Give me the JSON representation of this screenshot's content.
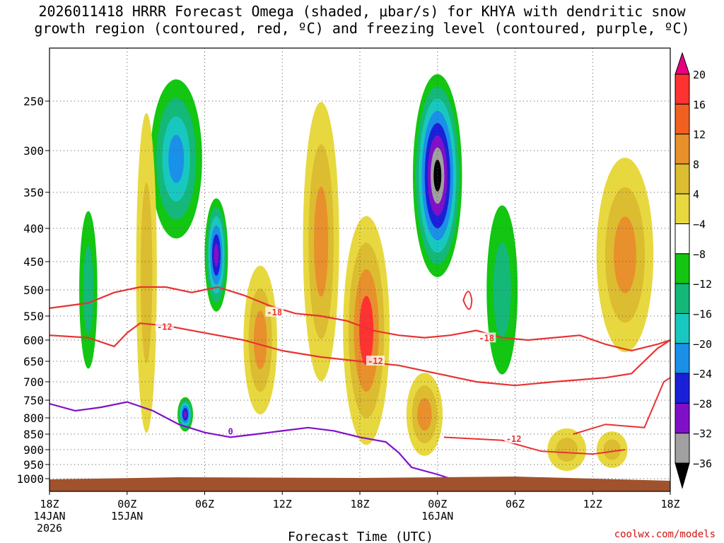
{
  "chart_data": {
    "type": "heatmap",
    "title_line1": "2026011418 HRRR Forecast Omega (shaded, μbar/s) for KHYA with dendritic snow",
    "title_line2": "growth region (contoured, red, ºC) and freezing level (contoured, purple, ºC)",
    "xlabel": "Forecast Time (UTC)",
    "credit": "coolwx.com/models",
    "x_range_hours": [
      0,
      48
    ],
    "y_range_hpa": [
      1000,
      200
    ],
    "y_ticks": [
      "250",
      "300",
      "350",
      "400",
      "450",
      "500",
      "550",
      "600",
      "650",
      "700",
      "750",
      "800",
      "850",
      "900",
      "950",
      "1000"
    ],
    "x_ticks": [
      {
        "hour": 0,
        "l1": "18Z",
        "l2": "14JAN",
        "l3": "2026"
      },
      {
        "hour": 6,
        "l1": "00Z",
        "l2": "15JAN",
        "l3": ""
      },
      {
        "hour": 12,
        "l1": "06Z",
        "l2": "",
        "l3": ""
      },
      {
        "hour": 18,
        "l1": "12Z",
        "l2": "",
        "l3": ""
      },
      {
        "hour": 24,
        "l1": "18Z",
        "l2": "",
        "l3": ""
      },
      {
        "hour": 30,
        "l1": "00Z",
        "l2": "16JAN",
        "l3": ""
      },
      {
        "hour": 36,
        "l1": "06Z",
        "l2": "",
        "l3": ""
      },
      {
        "hour": 42,
        "l1": "12Z",
        "l2": "",
        "l3": ""
      },
      {
        "hour": 48,
        "l1": "18Z",
        "l2": "",
        "l3": ""
      }
    ],
    "colorbar": {
      "labels": [
        "20",
        "16",
        "12",
        "8",
        "4",
        "−4",
        "−8",
        "−12",
        "−16",
        "−20",
        "−24",
        "−28",
        "−32",
        "−36"
      ],
      "colors": [
        "#e8007e",
        "#ff3232",
        "#f06020",
        "#e8902c",
        "#dcbc30",
        "#e8d840",
        "#ffffff",
        "#12c612",
        "#14b878",
        "#18c8c0",
        "#1a90e8",
        "#1a20d8",
        "#8010c8",
        "#a0a0a0",
        "#000000"
      ]
    },
    "contour_labels": {
      "dgz_red": [
        "-18",
        "-12",
        "-18",
        "-12",
        "-12"
      ],
      "freezing_purple": [
        "0"
      ]
    },
    "dgz_upper_minus18": [
      [
        0,
        535
      ],
      [
        3,
        525
      ],
      [
        5,
        505
      ],
      [
        7,
        495
      ],
      [
        9,
        495
      ],
      [
        11,
        505
      ],
      [
        13,
        495
      ],
      [
        15,
        510
      ],
      [
        17,
        530
      ],
      [
        19,
        545
      ],
      [
        21,
        550
      ],
      [
        23,
        560
      ],
      [
        25,
        580
      ],
      [
        27,
        590
      ],
      [
        29,
        595
      ],
      [
        31,
        590
      ],
      [
        33,
        580
      ],
      [
        35,
        595
      ],
      [
        37,
        600
      ],
      [
        39,
        595
      ],
      [
        41,
        590
      ],
      [
        43,
        610
      ],
      [
        45,
        625
      ],
      [
        47,
        610
      ],
      [
        48,
        600
      ]
    ],
    "dgz_lower_minus12": [
      [
        0,
        590
      ],
      [
        3,
        595
      ],
      [
        5,
        615
      ],
      [
        6,
        585
      ],
      [
        7,
        565
      ],
      [
        9,
        570
      ],
      [
        12,
        585
      ],
      [
        15,
        600
      ],
      [
        18,
        625
      ],
      [
        21,
        640
      ],
      [
        24,
        650
      ],
      [
        27,
        660
      ],
      [
        30,
        680
      ],
      [
        33,
        700
      ],
      [
        36,
        710
      ],
      [
        39,
        700
      ],
      [
        41,
        695
      ],
      [
        43,
        690
      ],
      [
        45,
        680
      ],
      [
        47,
        620
      ],
      [
        48,
        600
      ]
    ],
    "freezing_level_0C": [
      [
        0,
        760
      ],
      [
        2,
        780
      ],
      [
        4,
        770
      ],
      [
        6,
        755
      ],
      [
        8,
        780
      ],
      [
        10,
        820
      ],
      [
        12,
        845
      ],
      [
        14,
        860
      ],
      [
        16,
        850
      ],
      [
        18,
        840
      ],
      [
        20,
        830
      ],
      [
        22,
        840
      ],
      [
        24,
        860
      ],
      [
        26,
        875
      ],
      [
        27,
        910
      ],
      [
        28,
        960
      ],
      [
        30,
        985
      ],
      [
        31,
        1000
      ]
    ],
    "omega_cells": [
      {
        "t": 24.5,
        "p": 580,
        "rt": 1.8,
        "rp": 230,
        "v": 16
      },
      {
        "t": 30.0,
        "p": 330,
        "rt": 1.9,
        "rp": 120,
        "v": -36
      },
      {
        "t": 12.9,
        "p": 440,
        "rt": 0.9,
        "rp": 90,
        "v": -26
      },
      {
        "t": 9.8,
        "p": 310,
        "rt": 2.0,
        "rp": 90,
        "v": -16
      },
      {
        "t": 44.5,
        "p": 440,
        "rt": 2.2,
        "rp": 150,
        "v": 12
      },
      {
        "t": 21.0,
        "p": 420,
        "rt": 1.4,
        "rp": 200,
        "v": 12
      },
      {
        "t": 16.3,
        "p": 600,
        "rt": 1.3,
        "rp": 160,
        "v": 12
      },
      {
        "t": 29.0,
        "p": 790,
        "rt": 1.4,
        "rp": 120,
        "v": 12
      },
      {
        "t": 3.0,
        "p": 500,
        "rt": 0.7,
        "rp": 140,
        "v": -10
      },
      {
        "t": 10.5,
        "p": 790,
        "rt": 0.6,
        "rp": 50,
        "v": -24
      },
      {
        "t": 7.5,
        "p": 470,
        "rt": 0.8,
        "rp": 250,
        "v": 8
      },
      {
        "t": 40.0,
        "p": 900,
        "rt": 1.5,
        "rp": 70,
        "v": 8
      },
      {
        "t": 43.5,
        "p": 900,
        "rt": 1.2,
        "rp": 60,
        "v": 8
      },
      {
        "t": 35.0,
        "p": 500,
        "rt": 1.2,
        "rp": 150,
        "v": -10
      }
    ]
  }
}
